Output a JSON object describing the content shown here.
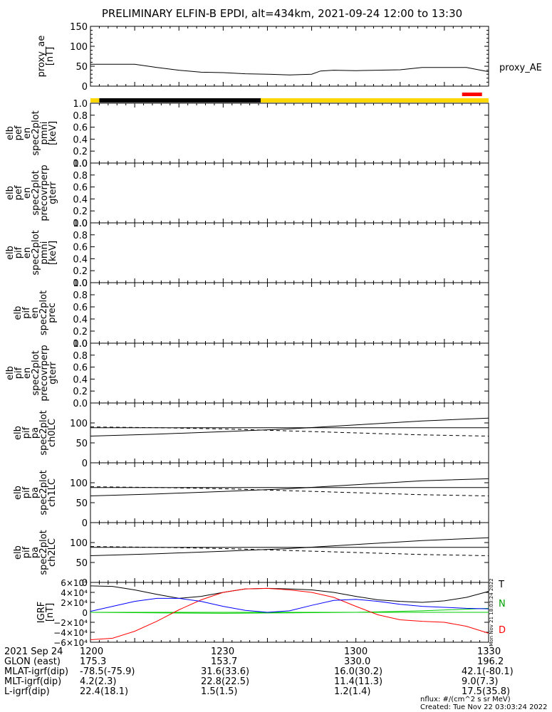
{
  "title": "PRELIMINARY ELFIN-B EPDI, alt=434km, 2021-09-24 12:00 to 13:30",
  "colors": {
    "night_bar": "#000000",
    "day_bar": "#ffd700",
    "flag_bar": "#ff0000",
    "T": "#000000",
    "N": "#00a000",
    "D": "#ff0000",
    "blue": "#0000ff",
    "green": "#00cc00"
  },
  "chart_data": [
    {
      "type": "line",
      "panel": "proxy_ae",
      "ylabel": [
        "proxy_ae",
        "[nT]"
      ],
      "yticks": [
        "150",
        "100",
        "50",
        "0"
      ],
      "ylim": [
        0,
        150
      ],
      "legend": "proxy_AE",
      "series": [
        {
          "name": "proxy_AE",
          "x": [
            0,
            5,
            10,
            15,
            20,
            25,
            30,
            35,
            40,
            45,
            50,
            52,
            55,
            60,
            65,
            70,
            75,
            80,
            85,
            90
          ],
          "y": [
            55,
            55,
            55,
            47,
            40,
            35,
            34,
            31,
            30,
            28,
            30,
            38,
            40,
            39,
            40,
            41,
            47,
            47,
            47,
            36
          ]
        }
      ]
    },
    {
      "type": "bar",
      "panel": "orbit_bar",
      "segments": [
        {
          "start": 0,
          "end": 2,
          "color": "day_bar"
        },
        {
          "start": 2,
          "end": 38.5,
          "color": "night_bar"
        },
        {
          "start": 38.5,
          "end": 90,
          "color": "day_bar"
        }
      ],
      "flag": {
        "start": 84,
        "end": 88.5,
        "color": "flag_bar"
      }
    },
    {
      "type": "heatmap",
      "panel": "pef_pmni",
      "ylabel": [
        "elb",
        "pef",
        "en",
        "spec2plot",
        "pmni",
        "[keV]"
      ],
      "yticks": [
        "1.0",
        "0.8",
        "0.6",
        "0.4",
        "0.2",
        "0.0"
      ],
      "ylim": [
        0,
        1
      ]
    },
    {
      "type": "heatmap",
      "panel": "pef_precovrperp",
      "ylabel": [
        "elb",
        "pef",
        "en",
        "spec2plot",
        "precovrperp",
        "gterr"
      ],
      "yticks": [
        "1.0",
        "0.8",
        "0.6",
        "0.4",
        "0.2",
        "0.0"
      ],
      "ylim": [
        0,
        1
      ]
    },
    {
      "type": "heatmap",
      "panel": "pif_pmni",
      "ylabel": [
        "elb",
        "pif",
        "en",
        "spec2plot",
        "pmni",
        "[keV]"
      ],
      "yticks": [
        "1.0",
        "0.8",
        "0.6",
        "0.4",
        "0.2",
        "0.0"
      ],
      "ylim": [
        0,
        1
      ]
    },
    {
      "type": "heatmap",
      "panel": "pif_prec",
      "ylabel": [
        "elb",
        "pif",
        "en",
        "spec2plot",
        "prec"
      ],
      "yticks": [
        "1.0",
        "0.8",
        "0.6",
        "0.4",
        "0.2",
        "0.0"
      ],
      "ylim": [
        0,
        1
      ]
    },
    {
      "type": "heatmap",
      "panel": "pif_precovrperp",
      "ylabel": [
        "elb",
        "pif",
        "en",
        "spec2plot",
        "precovrperp",
        "gterr"
      ],
      "yticks": [
        "1.0",
        "0.8",
        "0.6",
        "0.4",
        "0.2",
        "0.0"
      ],
      "ylim": [
        0,
        1
      ]
    },
    {
      "type": "line",
      "panel": "ch0LC",
      "ylabel": [
        "elb",
        "pif",
        "pa",
        "spec2plot",
        "ch0LC"
      ],
      "yticks": [
        "100",
        "50",
        "0"
      ],
      "ylim": [
        0,
        150
      ],
      "series": [
        {
          "style": "solid",
          "x": [
            0,
            90
          ],
          "y": [
            88,
            88
          ]
        },
        {
          "style": "solid",
          "x": [
            0,
            15,
            30,
            45,
            60,
            75,
            90
          ],
          "y": [
            67,
            72,
            78,
            85,
            95,
            105,
            112
          ]
        },
        {
          "style": "dashed",
          "x": [
            0,
            15,
            30,
            45,
            60,
            75,
            90
          ],
          "y": [
            90,
            88,
            85,
            80,
            75,
            70,
            67
          ]
        }
      ]
    },
    {
      "type": "line",
      "panel": "ch1LC",
      "ylabel": [
        "elb",
        "pif",
        "pa",
        "spec2plot",
        "ch1LC"
      ],
      "yticks": [
        "100",
        "50",
        "0"
      ],
      "ylim": [
        0,
        150
      ],
      "series": [
        {
          "style": "solid",
          "x": [
            0,
            90
          ],
          "y": [
            88,
            88
          ]
        },
        {
          "style": "solid",
          "x": [
            0,
            15,
            30,
            45,
            60,
            75,
            90
          ],
          "y": [
            67,
            72,
            78,
            85,
            95,
            105,
            110
          ]
        },
        {
          "style": "dashed",
          "x": [
            0,
            15,
            30,
            45,
            60,
            75,
            90
          ],
          "y": [
            90,
            88,
            85,
            80,
            75,
            70,
            67
          ]
        }
      ]
    },
    {
      "type": "line",
      "panel": "ch2LC",
      "ylabel": [
        "elb",
        "pif",
        "pa",
        "spec2plot",
        "ch2LC"
      ],
      "yticks": [
        "100",
        "50",
        "0"
      ],
      "ylim": [
        0,
        150
      ],
      "series": [
        {
          "style": "solid",
          "x": [
            0,
            90
          ],
          "y": [
            88,
            88
          ]
        },
        {
          "style": "solid",
          "x": [
            0,
            15,
            30,
            45,
            60,
            75,
            90
          ],
          "y": [
            67,
            72,
            78,
            85,
            95,
            105,
            112
          ]
        },
        {
          "style": "dashed",
          "x": [
            0,
            15,
            30,
            45,
            60,
            75,
            90
          ],
          "y": [
            90,
            88,
            85,
            80,
            75,
            70,
            67
          ]
        }
      ]
    },
    {
      "type": "line",
      "panel": "igrf",
      "ylabel": [
        "IGRF",
        "[nT]"
      ],
      "yticks": [
        "6×10⁴",
        "4×10⁴",
        "2×10⁴",
        "0",
        "−2×10⁴",
        "−4×10⁴",
        "−6×10⁴"
      ],
      "ylim": [
        -60000,
        60000
      ],
      "legend": [
        "T",
        "N",
        "D"
      ],
      "series": [
        {
          "name": "T",
          "color": "black",
          "x": [
            0,
            5,
            10,
            15,
            20,
            25,
            30,
            35,
            40,
            45,
            50,
            55,
            60,
            65,
            70,
            75,
            80,
            85,
            90
          ],
          "y": [
            53000,
            52000,
            45000,
            36000,
            28000,
            32000,
            40000,
            47000,
            48000,
            47000,
            45000,
            40000,
            32000,
            25000,
            22000,
            20000,
            23000,
            30000,
            42000
          ]
        },
        {
          "name": "N",
          "color": "green",
          "x": [
            0,
            15,
            30,
            45,
            60,
            75,
            90
          ],
          "y": [
            0,
            -1000,
            -2000,
            -1000,
            0,
            3000,
            8000
          ]
        },
        {
          "name": "D",
          "color": "red",
          "x": [
            0,
            5,
            10,
            15,
            20,
            25,
            30,
            35,
            40,
            45,
            50,
            55,
            60,
            65,
            70,
            75,
            80,
            85,
            90
          ],
          "y": [
            -55000,
            -52000,
            -38000,
            -18000,
            5000,
            25000,
            40000,
            47000,
            48000,
            45000,
            40000,
            30000,
            12000,
            -5000,
            -15000,
            -18000,
            -20000,
            -28000,
            -42000
          ]
        },
        {
          "name": "blue",
          "color": "blue",
          "x": [
            0,
            5,
            10,
            15,
            20,
            25,
            30,
            35,
            40,
            45,
            50,
            55,
            60,
            65,
            70,
            75,
            80,
            85,
            90
          ],
          "y": [
            2000,
            12000,
            22000,
            28000,
            28000,
            22000,
            12000,
            4000,
            0,
            3000,
            14000,
            24000,
            26000,
            22000,
            16000,
            12000,
            10000,
            8000,
            7000
          ]
        }
      ]
    }
  ],
  "stamp": "Mon Nov 21 18:03:24 2022",
  "footer": {
    "date": "2021 Sep 24",
    "times": [
      "1200",
      "1230",
      "1300",
      "1330"
    ],
    "rows": [
      {
        "label": "GLON (east)",
        "values": [
          "175.3",
          "153.7",
          "330.0",
          "196.2"
        ]
      },
      {
        "label": "MLAT-igrf(dip)",
        "values": [
          "-78.5(-75.9)",
          "31.6(33.6)",
          "16.0(30.2)",
          "42.1(-80.1)"
        ]
      },
      {
        "label": "MLT-igrf(dip)",
        "values": [
          "4.2(2.3)",
          "22.8(22.5)",
          "11.4(11.3)",
          "9.0(7.3)"
        ]
      },
      {
        "label": "L-igrf(dip)",
        "values": [
          "22.4(18.1)",
          "1.5(1.5)",
          "1.2(1.4)",
          "17.5(35.8)"
        ]
      }
    ],
    "nflux": "nflux: #/(cm^2 s sr MeV)",
    "created": "Created: Tue Nov 22 03:03:24 2022"
  }
}
